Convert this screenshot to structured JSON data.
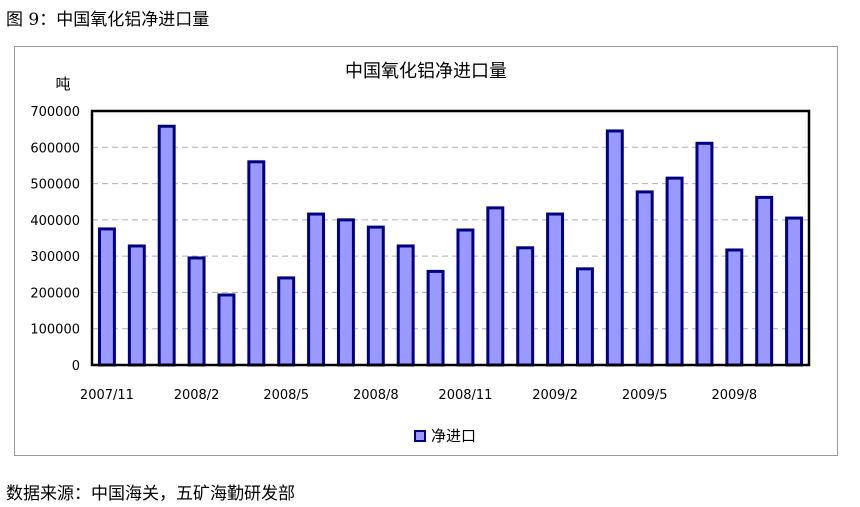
{
  "figure_caption": "图 9：中国氧化铝净进口量",
  "source_note": "数据来源：中国海关，五矿海勤研发部",
  "chart_data": {
    "type": "bar",
    "title": "中国氧化铝净进口量",
    "ylabel": "吨",
    "xlabel": "",
    "ylim": [
      0,
      700000
    ],
    "yticks": [
      0,
      100000,
      200000,
      300000,
      400000,
      500000,
      600000,
      700000
    ],
    "ytick_labels": [
      "0",
      "100000",
      "200000",
      "300000",
      "400000",
      "500000",
      "600000",
      "700000"
    ],
    "grid": true,
    "legend": "bottom-center",
    "categories": [
      "2007/11",
      "2007/12",
      "2008/1",
      "2008/2",
      "2008/3",
      "2008/4",
      "2008/5",
      "2008/6",
      "2008/7",
      "2008/8",
      "2008/9",
      "2008/10",
      "2008/11",
      "2008/12",
      "2009/1",
      "2009/2",
      "2009/3",
      "2009/4",
      "2009/5",
      "2009/6",
      "2009/7",
      "2009/8",
      "2009/9",
      "2009/10"
    ],
    "xtick_labels": [
      "2007/11",
      "",
      "",
      "2008/2",
      "",
      "",
      "2008/5",
      "",
      "",
      "2008/8",
      "",
      "",
      "2008/11",
      "",
      "",
      "2009/2",
      "",
      "",
      "2009/5",
      "",
      "",
      "2009/8",
      "",
      ""
    ],
    "series": [
      {
        "name": "净进口",
        "values": [
          375000,
          328000,
          658000,
          295000,
          193000,
          560000,
          240000,
          416000,
          400000,
          380000,
          328000,
          258000,
          372000,
          433000,
          323000,
          416000,
          265000,
          645000,
          477000,
          515000,
          611000,
          317000,
          462000,
          405000
        ]
      }
    ],
    "colors": {
      "bar_fill": "#9999ff",
      "bar_edge": "#000080",
      "plot_border": "#000000",
      "grid": "#b0b0b0"
    }
  }
}
